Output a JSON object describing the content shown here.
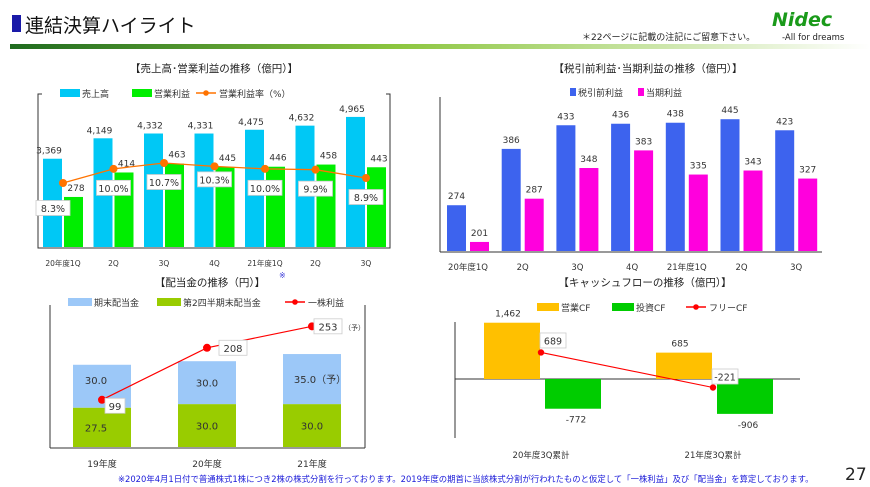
{
  "header": {
    "title": "連結決算ハイライト",
    "note": "＊22ページに記載の注記にご留意下さい。",
    "logo": "Nidec",
    "tagline": "-All for dreams",
    "accent": "#1a1aa8"
  },
  "footer": {
    "note": "※2020年4月1日付で普通株式1株につき2株の株式分割を行っております。2019年度の期首に当該株式分割が行われたものと仮定して「一株利益」及び「配当金」を算定しております。",
    "page_number": "27"
  },
  "chart_data": [
    {
      "type": "bar",
      "title": "【売上高･営業利益の推移（億円）】",
      "categories": [
        "20年度1Q",
        "2Q",
        "3Q",
        "4Q",
        "21年度1Q",
        "2Q",
        "3Q"
      ],
      "series": [
        {
          "name": "売上高",
          "kind": "bar",
          "color": "#00c8f5",
          "values": [
            3369,
            4149,
            4332,
            4331,
            4475,
            4632,
            4965
          ],
          "labels": [
            "3,369",
            "4,149",
            "4,332",
            "4,331",
            "4,475",
            "4,632",
            "4,965"
          ]
        },
        {
          "name": "営業利益",
          "kind": "bar",
          "color": "#00ee00",
          "values": [
            278,
            414,
            463,
            445,
            446,
            458,
            443
          ],
          "labels": [
            "278",
            "414",
            "463",
            "445",
            "446",
            "458",
            "443"
          ]
        },
        {
          "name": "営業利益率（%）",
          "kind": "line",
          "color": "#ff7300",
          "values": [
            8.3,
            10.0,
            10.7,
            10.3,
            10.0,
            9.9,
            8.9
          ],
          "labels": [
            "8.3%",
            "10.0%",
            "10.7%",
            "10.3%",
            "10.0%",
            "9.9%",
            "8.9%"
          ]
        }
      ],
      "legend": "top"
    },
    {
      "type": "bar",
      "title": "【税引前利益･当期利益の推移（億円）】",
      "categories": [
        "20年度1Q",
        "2Q",
        "3Q",
        "4Q",
        "21年度1Q",
        "2Q",
        "3Q"
      ],
      "series": [
        {
          "name": "税引前利益",
          "color": "#3d63ee",
          "values": [
            274,
            386,
            433,
            436,
            438,
            445,
            423
          ]
        },
        {
          "name": "当期利益",
          "color": "#ff00dd",
          "values": [
            201,
            287,
            348,
            383,
            335,
            343,
            327
          ]
        }
      ],
      "legend": "top"
    },
    {
      "type": "bar",
      "title": "【配当金の推移（円）】",
      "title_mark": "※",
      "categories": [
        "19年度",
        "20年度",
        "21年度"
      ],
      "series": [
        {
          "name": "期末配当金",
          "kind": "stacked-bar",
          "color": "#9cc8f8",
          "values": [
            30.0,
            30.0,
            35.0
          ],
          "labels": [
            "30.0",
            "30.0",
            "35.0（予）"
          ]
        },
        {
          "name": "第2四半期末配当金",
          "kind": "stacked-bar",
          "color": "#99cc00",
          "values": [
            27.5,
            30.0,
            30.0
          ],
          "labels": [
            "27.5",
            "30.0",
            "30.0"
          ]
        },
        {
          "name": "一株利益",
          "kind": "line",
          "color": "#ff0000",
          "values": [
            99,
            208,
            253
          ],
          "labels": [
            "99",
            "208",
            "253"
          ]
        }
      ],
      "forecast_mark": "（予）",
      "legend": "top"
    },
    {
      "type": "bar",
      "title": "【キャッシュフローの推移（億円）】",
      "categories": [
        "20年度3Q累計",
        "21年度3Q累計"
      ],
      "series": [
        {
          "name": "営業CF",
          "kind": "bar",
          "color": "#ffc000",
          "values": [
            1462,
            685
          ],
          "labels": [
            "1,462",
            "685"
          ]
        },
        {
          "name": "投資CF",
          "kind": "bar",
          "color": "#00cc00",
          "values": [
            -772,
            -906
          ],
          "labels": [
            "-772",
            "-906"
          ]
        },
        {
          "name": "フリーCF",
          "kind": "line",
          "color": "#ff0000",
          "values": [
            689,
            -221
          ],
          "labels": [
            "689",
            "-221"
          ]
        }
      ],
      "legend": "top"
    }
  ]
}
